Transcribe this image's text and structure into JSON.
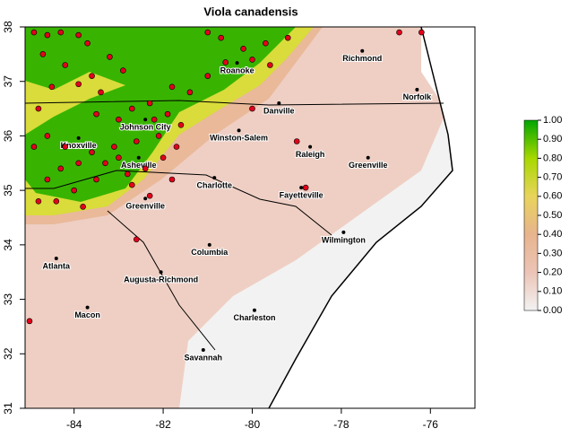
{
  "chart_data": {
    "type": "map",
    "title": "Viola canadensis",
    "xlim": [
      -85.1,
      -75
    ],
    "ylim": [
      31,
      38
    ],
    "xticks": [
      -84,
      -82,
      -80,
      -78,
      -76
    ],
    "yticks": [
      31,
      32,
      33,
      34,
      35,
      36,
      37,
      38
    ],
    "colorbar": {
      "lim": [
        0,
        1
      ],
      "colors": [
        "#f2f2f2",
        "#ecc4b6",
        "#e7b48e",
        "#e8d45c",
        "#a8d800",
        "#00a600"
      ],
      "ticks": [
        {
          "value": 0,
          "label": "0.00"
        },
        {
          "value": 0.1,
          "label": "0.10"
        },
        {
          "value": 0.2,
          "label": "0.20"
        },
        {
          "value": 0.3,
          "label": "0.30"
        },
        {
          "value": 0.4,
          "label": "0.40"
        },
        {
          "value": 0.5,
          "label": "0.50"
        },
        {
          "value": 0.6,
          "label": "0.60"
        },
        {
          "value": 0.7,
          "label": "0.70"
        },
        {
          "value": 0.8,
          "label": "0.80"
        },
        {
          "value": 0.9,
          "label": "0.90"
        },
        {
          "value": 1,
          "label": "1.00"
        }
      ]
    },
    "cities": [
      {
        "name": "Richmond",
        "lon": -77.53,
        "lat": 37.56
      },
      {
        "name": "Norfolk",
        "lon": -76.3,
        "lat": 36.85
      },
      {
        "name": "Roanoke",
        "lon": -80.34,
        "lat": 37.34
      },
      {
        "name": "Danville",
        "lon": -79.4,
        "lat": 36.6
      },
      {
        "name": "Johnson City",
        "lon": -82.4,
        "lat": 36.3
      },
      {
        "name": "Winston-Salem",
        "lon": -80.3,
        "lat": 36.1
      },
      {
        "name": "Knoxville",
        "lon": -83.9,
        "lat": 35.96
      },
      {
        "name": "Raleigh",
        "lon": -78.7,
        "lat": 35.8
      },
      {
        "name": "Greenville",
        "lon": -77.4,
        "lat": 35.6
      },
      {
        "name": "Asheville",
        "lon": -82.55,
        "lat": 35.6
      },
      {
        "name": "Charlotte",
        "lon": -80.85,
        "lat": 35.23
      },
      {
        "name": "Fayetteville",
        "lon": -78.9,
        "lat": 35.05
      },
      {
        "name": "Greenville",
        "lon": -82.4,
        "lat": 34.85
      },
      {
        "name": "Wilmington",
        "lon": -77.95,
        "lat": 34.23
      },
      {
        "name": "Columbia",
        "lon": -80.96,
        "lat": 34.0
      },
      {
        "name": "Atlanta",
        "lon": -84.4,
        "lat": 33.75
      },
      {
        "name": "Augusta-Richmond",
        "lon": -82.05,
        "lat": 33.5
      },
      {
        "name": "Macon",
        "lon": -83.7,
        "lat": 32.85
      },
      {
        "name": "Charleston",
        "lon": -79.95,
        "lat": 32.8
      },
      {
        "name": "Savannah",
        "lon": -81.1,
        "lat": 32.07
      }
    ],
    "points": {
      "color": "#e3001b",
      "x": [
        -84.9,
        -84.6,
        -84.3,
        -83.9,
        -83.7,
        -84.7,
        -84.2,
        -83.6,
        -83.2,
        -82.9,
        -84.5,
        -83.9,
        -83.4,
        -84.8,
        -81.0,
        -80.7,
        -80.2,
        -79.7,
        -80.0,
        -80.6,
        -79.2,
        -79.6,
        -76.7,
        -76.2,
        -81.0,
        -83.5,
        -83.0,
        -82.7,
        -82.3,
        -81.9,
        -81.6,
        -82.1,
        -82.6,
        -83.1,
        -83.6,
        -83.9,
        -84.3,
        -84.6,
        -83.3,
        -83.0,
        -82.8,
        -82.4,
        -82.0,
        -81.7,
        -83.5,
        -84.0,
        -84.4,
        -84.8,
        -83.8,
        -82.7,
        -82.3,
        -81.8,
        -80.0,
        -79.0,
        -78.8,
        -82.6,
        -85.0,
        -84.9,
        -84.6,
        -84.2,
        -81.4,
        -81.8,
        -82.2
      ],
      "y": [
        37.9,
        37.85,
        37.9,
        37.85,
        37.7,
        37.5,
        37.3,
        37.1,
        37.45,
        37.2,
        36.9,
        36.95,
        36.8,
        36.5,
        37.9,
        37.8,
        37.6,
        37.7,
        37.4,
        37.35,
        37.8,
        37.3,
        37.9,
        37.9,
        37.1,
        36.4,
        36.3,
        36.5,
        36.6,
        36.4,
        36.2,
        36.0,
        35.9,
        35.8,
        35.7,
        35.5,
        35.4,
        35.2,
        35.5,
        35.6,
        35.3,
        35.4,
        35.6,
        35.8,
        35.2,
        35.0,
        34.8,
        34.8,
        34.7,
        35.1,
        34.9,
        35.2,
        36.5,
        35.9,
        35.05,
        34.1,
        32.6,
        35.8,
        36.0,
        35.8,
        36.8,
        36.9,
        36.3
      ]
    }
  }
}
